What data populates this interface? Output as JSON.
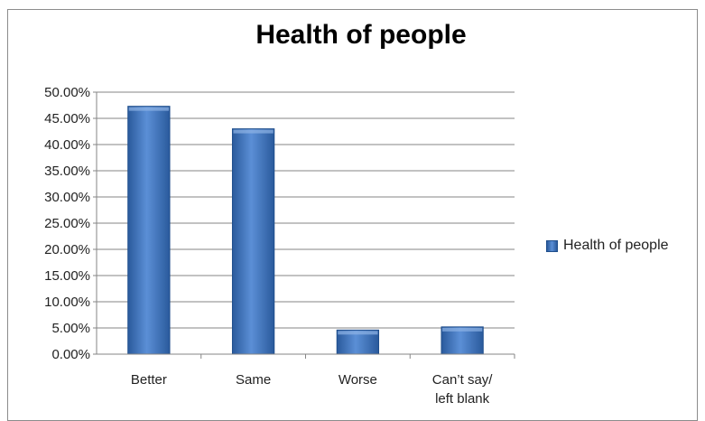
{
  "chart_data": {
    "type": "bar",
    "title": "Health of people",
    "categories": [
      "Better",
      "Same",
      "Worse",
      "Can’t say/ left blank"
    ],
    "category_lines": [
      [
        "Better"
      ],
      [
        "Same"
      ],
      [
        "Worse"
      ],
      [
        "Can’t say/",
        "left blank"
      ]
    ],
    "series": [
      {
        "name": "Health of people",
        "values": [
          47.3,
          43.0,
          4.6,
          5.2
        ]
      }
    ],
    "ylim": [
      0,
      50
    ],
    "ytick_step": 5,
    "ytick_format": "percent_2dp",
    "grid": true,
    "legend_position": "right",
    "bar_color": "#3a6fb8"
  }
}
